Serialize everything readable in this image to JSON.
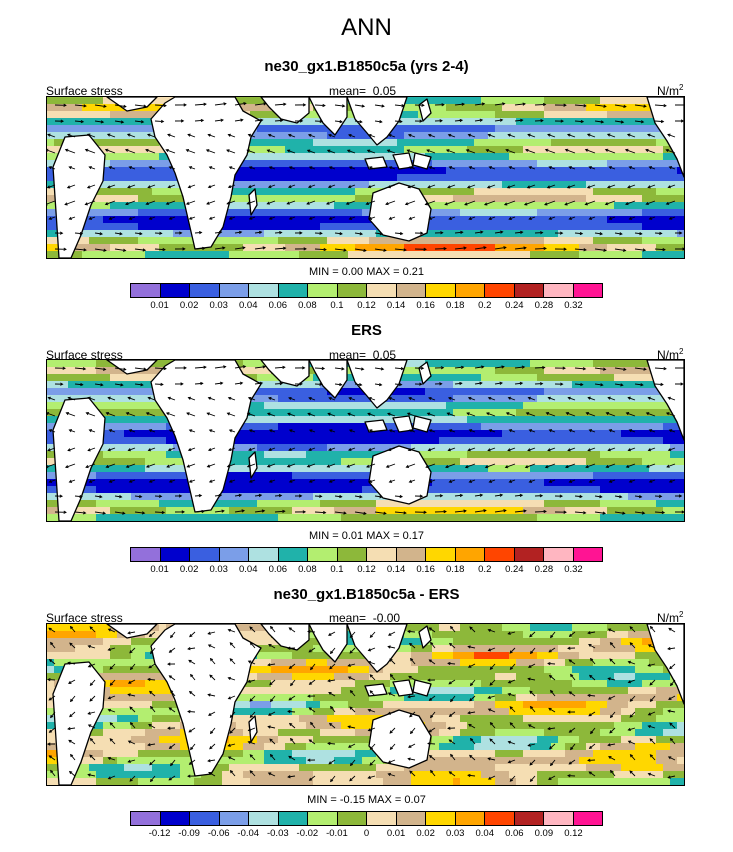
{
  "figure": {
    "title": "ANN"
  },
  "chart_data": [
    {
      "type": "map",
      "title": "ne30_gx1.B1850c5a (yrs 2-4)",
      "left_label": "Surface stress",
      "mean_label": "mean=",
      "mean_value": "0.05",
      "units": "N/m",
      "units_exp": "2",
      "min_label": "MIN =",
      "min_value": "0.00",
      "max_label": "MAX =",
      "max_value": "0.21",
      "colorbar": {
        "labels": [
          "0.01",
          "0.02",
          "0.03",
          "0.04",
          "0.06",
          "0.08",
          "0.1",
          "0.12",
          "0.14",
          "0.16",
          "0.18",
          "0.2",
          "0.24",
          "0.28",
          "0.32"
        ],
        "colors": [
          "#9370db",
          "#0000cd",
          "#3a5fe0",
          "#7b9ee8",
          "#aee1e1",
          "#20b2aa",
          "#b3ee70",
          "#8db83a",
          "#f5deb3",
          "#d2b48c",
          "#ffd700",
          "#ffa500",
          "#ff4500",
          "#b22222",
          "#ffb6c1",
          "#ff1493"
        ]
      }
    },
    {
      "type": "map",
      "title": "ERS",
      "left_label": "Surface stress",
      "mean_label": "mean=",
      "mean_value": "0.05",
      "units": "N/m",
      "units_exp": "2",
      "min_label": "MIN =",
      "min_value": "0.01",
      "max_label": "MAX =",
      "max_value": "0.17",
      "colorbar": {
        "labels": [
          "0.01",
          "0.02",
          "0.03",
          "0.04",
          "0.06",
          "0.08",
          "0.1",
          "0.12",
          "0.14",
          "0.16",
          "0.18",
          "0.2",
          "0.24",
          "0.28",
          "0.32"
        ],
        "colors": [
          "#9370db",
          "#0000cd",
          "#3a5fe0",
          "#7b9ee8",
          "#aee1e1",
          "#20b2aa",
          "#b3ee70",
          "#8db83a",
          "#f5deb3",
          "#d2b48c",
          "#ffd700",
          "#ffa500",
          "#ff4500",
          "#b22222",
          "#ffb6c1",
          "#ff1493"
        ]
      }
    },
    {
      "type": "map",
      "title": "ne30_gx1.B1850c5a - ERS",
      "left_label": "Surface stress",
      "mean_label": "mean=",
      "mean_value": "-0.00",
      "units": "N/m",
      "units_exp": "2",
      "min_label": "MIN =",
      "min_value": "-0.15",
      "max_label": "MAX =",
      "max_value": "0.07",
      "colorbar": {
        "labels": [
          "-0.12",
          "-0.09",
          "-0.06",
          "-0.04",
          "-0.03",
          "-0.02",
          "-0.01",
          "0",
          "0.01",
          "0.02",
          "0.03",
          "0.04",
          "0.06",
          "0.09",
          "0.12"
        ],
        "colors": [
          "#9370db",
          "#0000cd",
          "#3a5fe0",
          "#7b9ee8",
          "#aee1e1",
          "#20b2aa",
          "#b3ee70",
          "#8db83a",
          "#f5deb3",
          "#d2b48c",
          "#ffd700",
          "#ffa500",
          "#ff4500",
          "#b22222",
          "#ffb6c1",
          "#ff1493"
        ]
      }
    }
  ]
}
